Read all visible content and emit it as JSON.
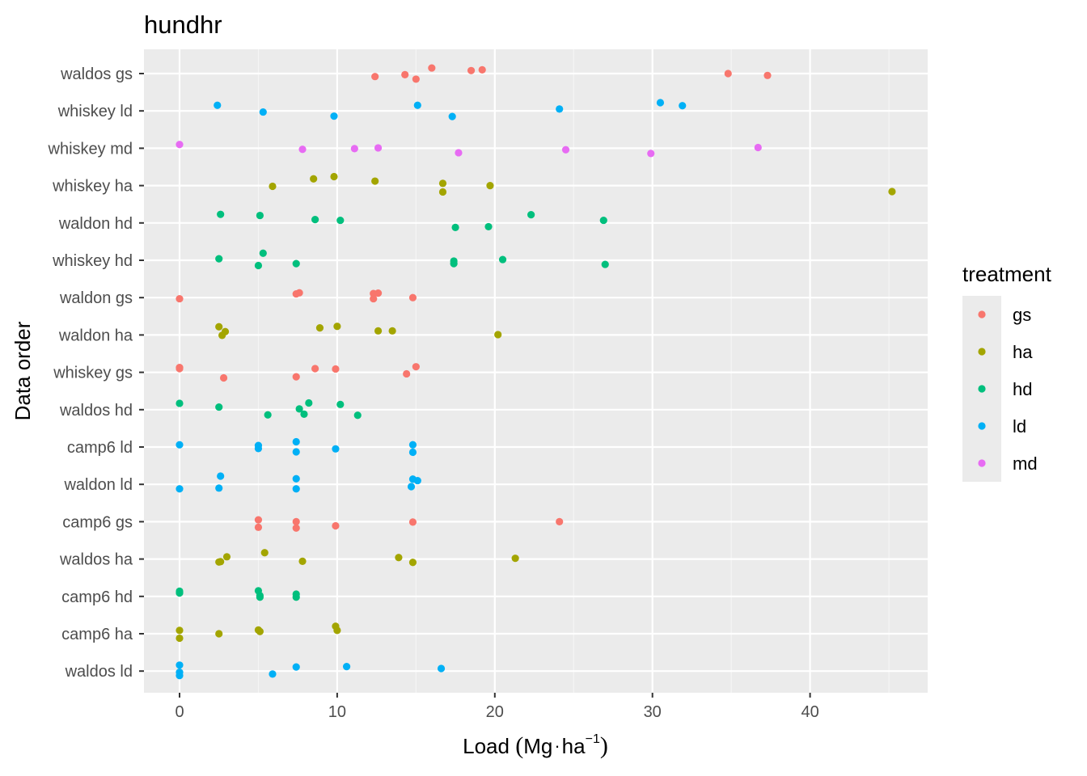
{
  "chart_data": {
    "type": "scatter",
    "title": "hundhr",
    "xlabel": {
      "prefix": "Load ",
      "open_paren": "(",
      "unit_mg": "Mg",
      "dot": "·",
      "unit_ha": "ha",
      "exponent": "−1",
      "close_paren": ")"
    },
    "ylabel": "Data order",
    "xlim": [
      -2.3,
      47.5
    ],
    "x_ticks": [
      0,
      10,
      20,
      30,
      40
    ],
    "x_tick_labels": [
      "0",
      "10",
      "20",
      "30",
      "40"
    ],
    "categories": [
      "waldos gs",
      "whiskey ld",
      "whiskey md",
      "whiskey ha",
      "waldon hd",
      "whiskey hd",
      "waldon gs",
      "waldon ha",
      "whiskey gs",
      "waldos hd",
      "camp6 ld",
      "waldon ld",
      "camp6 gs",
      "waldos ha",
      "camp6 hd",
      "camp6 ha",
      "waldos ld"
    ],
    "grid": true,
    "legend": {
      "title": "treatment",
      "placement": "right",
      "entries": [
        {
          "key": "gs",
          "label": "gs",
          "color": "#F8766D"
        },
        {
          "key": "ha",
          "label": "ha",
          "color": "#A3A500"
        },
        {
          "key": "hd",
          "label": "hd",
          "color": "#00BF7D"
        },
        {
          "key": "ld",
          "label": "ld",
          "color": "#00B0F6"
        },
        {
          "key": "md",
          "label": "md",
          "color": "#E76BF3"
        }
      ]
    },
    "series": [
      {
        "category": "waldos gs",
        "treatment": "gs",
        "points": [
          [
            12.4,
            -0.08
          ],
          [
            14.3,
            -0.03
          ],
          [
            15.0,
            -0.15
          ],
          [
            16.0,
            0.15
          ],
          [
            18.5,
            0.08
          ],
          [
            19.2,
            0.1
          ],
          [
            34.8,
            0.0
          ],
          [
            37.3,
            -0.05
          ]
        ]
      },
      {
        "category": "whiskey ld",
        "treatment": "ld",
        "points": [
          [
            2.4,
            0.15
          ],
          [
            5.3,
            -0.03
          ],
          [
            9.8,
            -0.14
          ],
          [
            15.1,
            0.15
          ],
          [
            17.3,
            -0.15
          ],
          [
            24.1,
            0.05
          ],
          [
            30.5,
            0.22
          ],
          [
            31.9,
            0.14
          ]
        ]
      },
      {
        "category": "whiskey md",
        "treatment": "md",
        "points": [
          [
            0.0,
            0.1
          ],
          [
            7.8,
            -0.03
          ],
          [
            11.1,
            -0.01
          ],
          [
            12.6,
            0.01
          ],
          [
            17.7,
            -0.12
          ],
          [
            24.5,
            -0.04
          ],
          [
            29.9,
            -0.14
          ],
          [
            36.7,
            0.02
          ]
        ]
      },
      {
        "category": "whiskey ha",
        "treatment": "ha",
        "points": [
          [
            5.9,
            -0.02
          ],
          [
            8.5,
            0.18
          ],
          [
            9.8,
            0.24
          ],
          [
            12.4,
            0.12
          ],
          [
            16.7,
            0.06
          ],
          [
            16.7,
            -0.17
          ],
          [
            19.7,
            0.0
          ],
          [
            45.2,
            -0.16
          ]
        ]
      },
      {
        "category": "waldon hd",
        "treatment": "hd",
        "points": [
          [
            2.6,
            0.23
          ],
          [
            5.1,
            0.2
          ],
          [
            8.6,
            0.09
          ],
          [
            10.2,
            0.07
          ],
          [
            17.5,
            -0.12
          ],
          [
            19.6,
            -0.1
          ],
          [
            22.3,
            0.22
          ],
          [
            26.9,
            0.07
          ]
        ]
      },
      {
        "category": "whiskey hd",
        "treatment": "hd",
        "points": [
          [
            2.5,
            0.04
          ],
          [
            5.0,
            -0.14
          ],
          [
            5.3,
            0.19
          ],
          [
            7.4,
            -0.09
          ],
          [
            17.4,
            -0.02
          ],
          [
            17.4,
            -0.09
          ],
          [
            20.5,
            0.02
          ],
          [
            27.0,
            -0.11
          ]
        ]
      },
      {
        "category": "waldon gs",
        "treatment": "gs",
        "points": [
          [
            0.0,
            -0.03
          ],
          [
            7.4,
            0.1
          ],
          [
            7.6,
            0.13
          ],
          [
            12.3,
            0.11
          ],
          [
            12.6,
            0.12
          ],
          [
            12.3,
            -0.03
          ],
          [
            14.8,
            0.0
          ]
        ]
      },
      {
        "category": "waldon ha",
        "treatment": "ha",
        "points": [
          [
            2.5,
            0.22
          ],
          [
            2.7,
            -0.01
          ],
          [
            2.9,
            0.09
          ],
          [
            8.9,
            0.19
          ],
          [
            10.0,
            0.23
          ],
          [
            12.6,
            0.11
          ],
          [
            13.5,
            0.11
          ],
          [
            20.2,
            0.01
          ]
        ]
      },
      {
        "category": "whiskey gs",
        "treatment": "gs",
        "points": [
          [
            0.0,
            0.13
          ],
          [
            0.0,
            0.1
          ],
          [
            2.8,
            -0.15
          ],
          [
            7.4,
            -0.12
          ],
          [
            8.6,
            0.1
          ],
          [
            9.9,
            0.09
          ],
          [
            14.4,
            -0.04
          ],
          [
            15.0,
            0.15
          ]
        ]
      },
      {
        "category": "waldos hd",
        "treatment": "hd",
        "points": [
          [
            0.0,
            0.17
          ],
          [
            2.5,
            0.07
          ],
          [
            5.6,
            -0.14
          ],
          [
            7.6,
            0.02
          ],
          [
            7.9,
            -0.12
          ],
          [
            8.2,
            0.18
          ],
          [
            10.2,
            0.14
          ],
          [
            11.3,
            -0.15
          ]
        ]
      },
      {
        "category": "camp6 ld",
        "treatment": "ld",
        "points": [
          [
            0.0,
            0.06
          ],
          [
            5.0,
            0.04
          ],
          [
            5.0,
            -0.04
          ],
          [
            7.4,
            0.14
          ],
          [
            7.4,
            -0.13
          ],
          [
            9.9,
            -0.05
          ],
          [
            14.8,
            0.06
          ],
          [
            14.8,
            -0.14
          ]
        ]
      },
      {
        "category": "waldon ld",
        "treatment": "ld",
        "points": [
          [
            0.0,
            -0.12
          ],
          [
            2.5,
            -0.1
          ],
          [
            2.6,
            0.22
          ],
          [
            7.4,
            0.15
          ],
          [
            7.4,
            -0.12
          ],
          [
            14.8,
            0.14
          ],
          [
            15.1,
            0.1
          ],
          [
            14.7,
            -0.06
          ]
        ]
      },
      {
        "category": "camp6 gs",
        "treatment": "gs",
        "points": [
          [
            5.0,
            0.05
          ],
          [
            5.0,
            -0.15
          ],
          [
            7.4,
            0.0
          ],
          [
            7.4,
            -0.17
          ],
          [
            9.9,
            -0.11
          ],
          [
            14.8,
            -0.01
          ],
          [
            24.1,
            0.0
          ]
        ]
      },
      {
        "category": "waldos ha",
        "treatment": "ha",
        "points": [
          [
            2.5,
            -0.08
          ],
          [
            2.6,
            -0.07
          ],
          [
            3.0,
            0.06
          ],
          [
            5.4,
            0.17
          ],
          [
            7.8,
            -0.06
          ],
          [
            13.9,
            0.04
          ],
          [
            14.8,
            -0.09
          ],
          [
            21.3,
            0.02
          ]
        ]
      },
      {
        "category": "camp6 hd",
        "treatment": "hd",
        "points": [
          [
            0.0,
            0.14
          ],
          [
            0.0,
            0.09
          ],
          [
            5.0,
            0.15
          ],
          [
            5.1,
            0.02
          ],
          [
            5.1,
            -0.02
          ],
          [
            7.4,
            0.06
          ],
          [
            7.4,
            -0.02
          ]
        ]
      },
      {
        "category": "camp6 ha",
        "treatment": "ha",
        "points": [
          [
            0.0,
            0.09
          ],
          [
            0.0,
            -0.12
          ],
          [
            2.5,
            0.0
          ],
          [
            5.0,
            0.1
          ],
          [
            5.1,
            0.06
          ],
          [
            9.9,
            0.2
          ],
          [
            10.0,
            0.09
          ]
        ]
      },
      {
        "category": "waldos ld",
        "treatment": "ld",
        "points": [
          [
            0.0,
            0.16
          ],
          [
            0.0,
            -0.03
          ],
          [
            0.0,
            -0.12
          ],
          [
            5.9,
            -0.08
          ],
          [
            7.4,
            0.11
          ],
          [
            10.6,
            0.12
          ],
          [
            16.6,
            0.07
          ]
        ]
      }
    ]
  }
}
